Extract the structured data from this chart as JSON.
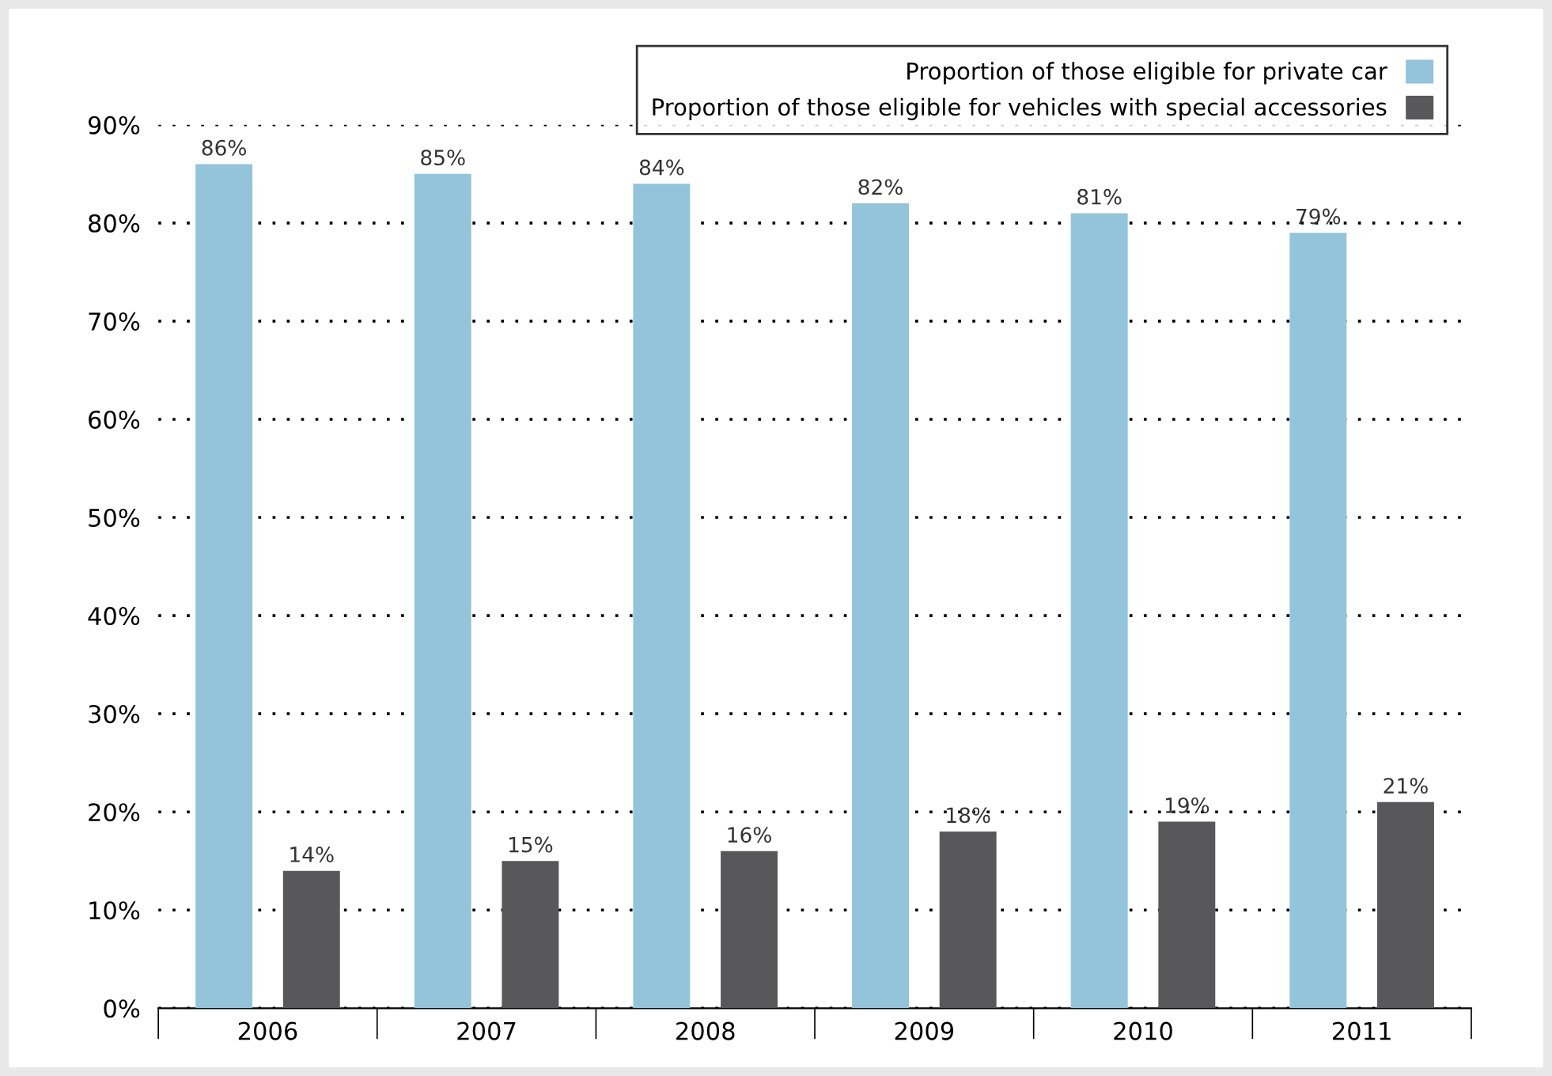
{
  "chart_data": {
    "type": "bar",
    "categories": [
      "2006",
      "2007",
      "2008",
      "2009",
      "2010",
      "2011"
    ],
    "series": [
      {
        "name": "Proportion of those eligible for private car",
        "color": "#93c4da",
        "values": [
          86,
          85,
          84,
          82,
          81,
          79
        ],
        "value_labels": [
          "86%",
          "85%",
          "84%",
          "82%",
          "81%",
          "79%"
        ]
      },
      {
        "name": "Proportion of those eligible for vehicles with special accessories",
        "color": "#58585a",
        "values": [
          14,
          15,
          16,
          18,
          19,
          21
        ],
        "value_labels": [
          "14%",
          "15%",
          "16%",
          "18%",
          "19%",
          "21%"
        ]
      }
    ],
    "ylim": [
      0,
      90
    ],
    "yticks": [
      {
        "value": 0,
        "label": "0%"
      },
      {
        "value": 10,
        "label": "10%"
      },
      {
        "value": 20,
        "label": "20%"
      },
      {
        "value": 30,
        "label": "30%"
      },
      {
        "value": 40,
        "label": "40%"
      },
      {
        "value": 50,
        "label": "50%"
      },
      {
        "value": 60,
        "label": "60%"
      },
      {
        "value": 70,
        "label": "70%"
      },
      {
        "value": 80,
        "label": "80%"
      },
      {
        "value": 90,
        "label": "90%"
      }
    ],
    "grid": "y",
    "legend": "top right"
  }
}
